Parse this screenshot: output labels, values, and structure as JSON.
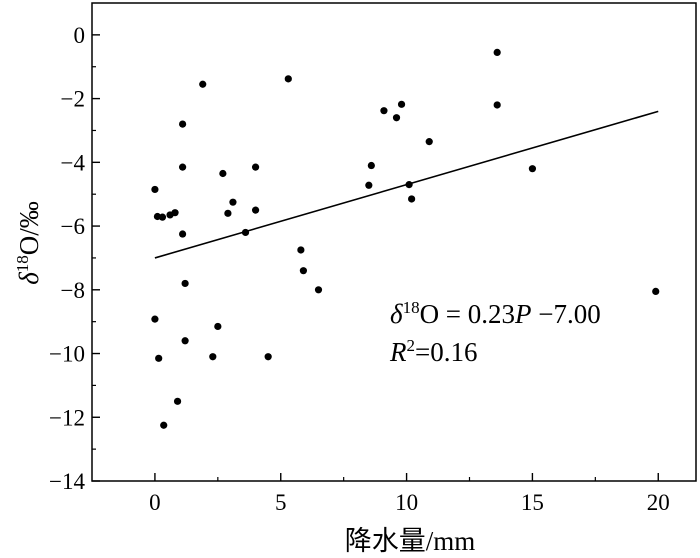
{
  "chart_data": {
    "type": "scatter",
    "xlabel": "降水量/mm",
    "ylabel": {
      "prefix": "δ",
      "sup": "18",
      "rest": "O/‰"
    },
    "xlim": [
      -2.5,
      21.5
    ],
    "ylim": [
      -14,
      1
    ],
    "xticks": [
      0,
      5,
      10,
      15,
      20
    ],
    "yticks": [
      0,
      -2,
      -4,
      -6,
      -8,
      -10,
      -12,
      -14
    ],
    "xtick_labels": [
      "0",
      "5",
      "10",
      "15",
      "20"
    ],
    "ytick_labels": [
      "0",
      "−2",
      "−4",
      "−6",
      "−8",
      "−10",
      "−12",
      "−14"
    ],
    "grid": false,
    "points": [
      {
        "x": 0.0,
        "y": -4.85
      },
      {
        "x": 0.1,
        "y": -5.7
      },
      {
        "x": 0.3,
        "y": -5.72
      },
      {
        "x": 0.6,
        "y": -5.65
      },
      {
        "x": 0.8,
        "y": -5.58
      },
      {
        "x": 0.0,
        "y": -8.92
      },
      {
        "x": 0.15,
        "y": -10.15
      },
      {
        "x": 0.35,
        "y": -12.25
      },
      {
        "x": 0.9,
        "y": -11.5
      },
      {
        "x": 1.1,
        "y": -2.8
      },
      {
        "x": 1.1,
        "y": -4.15
      },
      {
        "x": 1.1,
        "y": -6.25
      },
      {
        "x": 1.2,
        "y": -7.8
      },
      {
        "x": 1.2,
        "y": -9.6
      },
      {
        "x": 1.9,
        "y": -1.55
      },
      {
        "x": 2.3,
        "y": -10.1
      },
      {
        "x": 2.5,
        "y": -9.15
      },
      {
        "x": 2.7,
        "y": -4.35
      },
      {
        "x": 2.9,
        "y": -5.6
      },
      {
        "x": 3.1,
        "y": -5.25
      },
      {
        "x": 3.6,
        "y": -6.2
      },
      {
        "x": 4.0,
        "y": -4.15
      },
      {
        "x": 4.0,
        "y": -5.5
      },
      {
        "x": 4.5,
        "y": -10.1
      },
      {
        "x": 5.3,
        "y": -1.38
      },
      {
        "x": 5.8,
        "y": -6.75
      },
      {
        "x": 5.9,
        "y": -7.4
      },
      {
        "x": 6.5,
        "y": -8.0
      },
      {
        "x": 8.5,
        "y": -4.72
      },
      {
        "x": 8.6,
        "y": -4.1
      },
      {
        "x": 9.1,
        "y": -2.38
      },
      {
        "x": 9.6,
        "y": -2.6
      },
      {
        "x": 9.8,
        "y": -2.18
      },
      {
        "x": 10.1,
        "y": -4.7
      },
      {
        "x": 10.2,
        "y": -5.15
      },
      {
        "x": 10.9,
        "y": -3.35
      },
      {
        "x": 13.6,
        "y": -0.55
      },
      {
        "x": 13.6,
        "y": -2.2
      },
      {
        "x": 15.0,
        "y": -4.2
      },
      {
        "x": 19.9,
        "y": -8.05
      }
    ],
    "regression": {
      "x_start": 0.0,
      "x_end": 20.0,
      "slope": 0.23,
      "intercept": -7.0
    },
    "annotation": {
      "eq_delta": "δ",
      "eq_sup": "18",
      "eq_mid": "O = 0.23",
      "eq_var": "P",
      "eq_end": " −7.00",
      "r_var": "R",
      "r_sup": "2",
      "r_val": "=0.16"
    }
  }
}
